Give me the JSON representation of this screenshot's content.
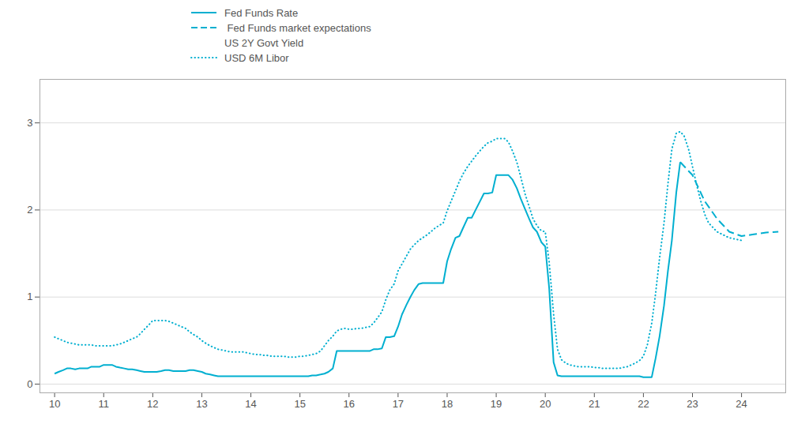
{
  "chart_data": {
    "type": "line",
    "xlim": [
      2009.7,
      2024.9
    ],
    "ylim": [
      -0.1,
      3.5
    ],
    "xticks": [
      {
        "value": 2010,
        "label": "10"
      },
      {
        "value": 2011,
        "label": "11"
      },
      {
        "value": 2012,
        "label": "12"
      },
      {
        "value": 2013,
        "label": "13"
      },
      {
        "value": 2014,
        "label": "14"
      },
      {
        "value": 2015,
        "label": "15"
      },
      {
        "value": 2016,
        "label": "16"
      },
      {
        "value": 2017,
        "label": "17"
      },
      {
        "value": 2018,
        "label": "18"
      },
      {
        "value": 2019,
        "label": "19"
      },
      {
        "value": 2020,
        "label": "20"
      },
      {
        "value": 2021,
        "label": "21"
      },
      {
        "value": 2022,
        "label": "22"
      },
      {
        "value": 2023,
        "label": "23"
      },
      {
        "value": 2024,
        "label": "24"
      }
    ],
    "yticks": [
      0,
      1,
      2,
      3
    ],
    "grid": true,
    "legend": "upper left",
    "series": [
      {
        "name": "Fed Funds Rate",
        "color": "#00afd0",
        "line_style": "solid",
        "x": [
          2010.0,
          2010.08,
          2010.17,
          2010.25,
          2010.33,
          2010.42,
          2010.5,
          2010.58,
          2010.67,
          2010.75,
          2010.83,
          2010.92,
          2011.0,
          2011.08,
          2011.17,
          2011.25,
          2011.33,
          2011.42,
          2011.5,
          2011.58,
          2011.67,
          2011.75,
          2011.83,
          2011.92,
          2012.0,
          2012.08,
          2012.17,
          2012.25,
          2012.33,
          2012.42,
          2012.5,
          2012.58,
          2012.67,
          2012.75,
          2012.83,
          2012.92,
          2013.0,
          2013.08,
          2013.17,
          2013.25,
          2013.33,
          2013.42,
          2013.5,
          2013.58,
          2013.67,
          2013.75,
          2013.83,
          2013.92,
          2014.0,
          2014.08,
          2014.17,
          2014.25,
          2014.33,
          2014.42,
          2014.5,
          2014.58,
          2014.67,
          2014.75,
          2014.83,
          2014.92,
          2015.0,
          2015.08,
          2015.17,
          2015.25,
          2015.33,
          2015.42,
          2015.5,
          2015.58,
          2015.67,
          2015.75,
          2015.83,
          2015.92,
          2016.0,
          2016.08,
          2016.17,
          2016.25,
          2016.33,
          2016.42,
          2016.5,
          2016.58,
          2016.67,
          2016.75,
          2016.83,
          2016.92,
          2017.0,
          2017.08,
          2017.17,
          2017.25,
          2017.33,
          2017.42,
          2017.5,
          2017.58,
          2017.67,
          2017.75,
          2017.83,
          2017.92,
          2018.0,
          2018.08,
          2018.17,
          2018.25,
          2018.33,
          2018.42,
          2018.5,
          2018.58,
          2018.67,
          2018.75,
          2018.83,
          2018.92,
          2019.0,
          2019.08,
          2019.17,
          2019.25,
          2019.33,
          2019.42,
          2019.5,
          2019.58,
          2019.67,
          2019.75,
          2019.83,
          2019.92,
          2020.0,
          2020.08,
          2020.17,
          2020.25,
          2020.33,
          2020.42,
          2020.5,
          2020.58,
          2020.67,
          2020.75,
          2020.83,
          2020.92,
          2021.0,
          2021.08,
          2021.17,
          2021.25,
          2021.33,
          2021.42,
          2021.5,
          2021.58,
          2021.67,
          2021.75,
          2021.83,
          2021.92,
          2022.0,
          2022.08,
          2022.17,
          2022.25,
          2022.33,
          2022.42,
          2022.5,
          2022.58,
          2022.67,
          2022.75
        ],
        "values": [
          0.12,
          0.14,
          0.16,
          0.18,
          0.18,
          0.17,
          0.18,
          0.18,
          0.18,
          0.2,
          0.2,
          0.2,
          0.22,
          0.22,
          0.22,
          0.2,
          0.19,
          0.18,
          0.17,
          0.17,
          0.16,
          0.15,
          0.14,
          0.14,
          0.14,
          0.14,
          0.15,
          0.16,
          0.16,
          0.15,
          0.15,
          0.15,
          0.15,
          0.16,
          0.16,
          0.15,
          0.14,
          0.12,
          0.11,
          0.1,
          0.09,
          0.09,
          0.09,
          0.09,
          0.09,
          0.09,
          0.09,
          0.09,
          0.09,
          0.09,
          0.09,
          0.09,
          0.09,
          0.09,
          0.09,
          0.09,
          0.09,
          0.09,
          0.09,
          0.09,
          0.09,
          0.09,
          0.09,
          0.1,
          0.1,
          0.11,
          0.12,
          0.14,
          0.18,
          0.38,
          0.38,
          0.38,
          0.38,
          0.38,
          0.38,
          0.38,
          0.38,
          0.38,
          0.4,
          0.4,
          0.41,
          0.54,
          0.54,
          0.55,
          0.66,
          0.8,
          0.91,
          1.0,
          1.08,
          1.15,
          1.16,
          1.16,
          1.16,
          1.16,
          1.16,
          1.16,
          1.41,
          1.55,
          1.68,
          1.7,
          1.8,
          1.91,
          1.91,
          2.0,
          2.1,
          2.19,
          2.19,
          2.2,
          2.4,
          2.4,
          2.4,
          2.4,
          2.35,
          2.25,
          2.13,
          2.02,
          1.9,
          1.8,
          1.75,
          1.63,
          1.58,
          1.1,
          0.25,
          0.1,
          0.09,
          0.09,
          0.09,
          0.09,
          0.09,
          0.09,
          0.09,
          0.09,
          0.09,
          0.09,
          0.09,
          0.09,
          0.09,
          0.09,
          0.09,
          0.09,
          0.09,
          0.09,
          0.09,
          0.09,
          0.08,
          0.08,
          0.08,
          0.3,
          0.55,
          0.9,
          1.3,
          1.65,
          2.2,
          2.55
        ]
      },
      {
        "name": " Fed Funds market expectations",
        "color": "#00afd0",
        "line_style": "dashed",
        "x": [
          2022.75,
          2023.0,
          2023.25,
          2023.5,
          2023.75,
          2024.0,
          2024.25,
          2024.5,
          2024.75
        ],
        "values": [
          2.55,
          2.4,
          2.1,
          1.9,
          1.75,
          1.7,
          1.72,
          1.74,
          1.75
        ]
      },
      {
        "name": "US 2Y Govt Yield",
        "line_style": "none",
        "x": [],
        "values": []
      },
      {
        "name": "USD 6M Libor",
        "color": "#00afd0",
        "line_style": "dotted",
        "x": [
          2010.0,
          2010.08,
          2010.17,
          2010.25,
          2010.33,
          2010.42,
          2010.5,
          2010.58,
          2010.67,
          2010.75,
          2010.83,
          2010.92,
          2011.0,
          2011.08,
          2011.17,
          2011.25,
          2011.33,
          2011.42,
          2011.5,
          2011.58,
          2011.67,
          2011.75,
          2011.83,
          2011.92,
          2012.0,
          2012.08,
          2012.17,
          2012.25,
          2012.33,
          2012.42,
          2012.5,
          2012.58,
          2012.67,
          2012.75,
          2012.83,
          2012.92,
          2013.0,
          2013.08,
          2013.17,
          2013.25,
          2013.33,
          2013.42,
          2013.5,
          2013.58,
          2013.67,
          2013.75,
          2013.83,
          2013.92,
          2014.0,
          2014.08,
          2014.17,
          2014.25,
          2014.33,
          2014.42,
          2014.5,
          2014.58,
          2014.67,
          2014.75,
          2014.83,
          2014.92,
          2015.0,
          2015.08,
          2015.17,
          2015.25,
          2015.33,
          2015.42,
          2015.5,
          2015.58,
          2015.67,
          2015.75,
          2015.83,
          2015.92,
          2016.0,
          2016.08,
          2016.17,
          2016.25,
          2016.33,
          2016.42,
          2016.5,
          2016.58,
          2016.67,
          2016.75,
          2016.83,
          2016.92,
          2017.0,
          2017.08,
          2017.17,
          2017.25,
          2017.33,
          2017.42,
          2017.5,
          2017.58,
          2017.67,
          2017.75,
          2017.83,
          2017.92,
          2018.0,
          2018.08,
          2018.17,
          2018.25,
          2018.33,
          2018.42,
          2018.5,
          2018.58,
          2018.67,
          2018.75,
          2018.83,
          2018.92,
          2019.0,
          2019.08,
          2019.17,
          2019.25,
          2019.33,
          2019.42,
          2019.5,
          2019.58,
          2019.67,
          2019.75,
          2019.83,
          2019.92,
          2020.0,
          2020.08,
          2020.17,
          2020.25,
          2020.33,
          2020.42,
          2020.5,
          2020.58,
          2020.67,
          2020.75,
          2020.83,
          2020.92,
          2021.0,
          2021.08,
          2021.17,
          2021.25,
          2021.33,
          2021.42,
          2021.5,
          2021.58,
          2021.67,
          2021.75,
          2021.83,
          2021.92,
          2022.0,
          2022.08,
          2022.17,
          2022.25,
          2022.33,
          2022.42,
          2022.5,
          2022.58,
          2022.67,
          2022.75,
          2022.83,
          2022.92,
          2023.0,
          2023.08,
          2023.17,
          2023.25,
          2023.33,
          2023.5,
          2023.75,
          2024.0
        ],
        "values": [
          0.54,
          0.52,
          0.5,
          0.48,
          0.47,
          0.46,
          0.45,
          0.45,
          0.45,
          0.45,
          0.44,
          0.44,
          0.44,
          0.44,
          0.44,
          0.45,
          0.46,
          0.48,
          0.5,
          0.52,
          0.54,
          0.58,
          0.63,
          0.68,
          0.73,
          0.73,
          0.73,
          0.73,
          0.72,
          0.7,
          0.68,
          0.66,
          0.64,
          0.6,
          0.57,
          0.54,
          0.5,
          0.47,
          0.44,
          0.42,
          0.4,
          0.39,
          0.38,
          0.37,
          0.37,
          0.37,
          0.37,
          0.36,
          0.35,
          0.34,
          0.34,
          0.33,
          0.33,
          0.32,
          0.32,
          0.32,
          0.32,
          0.31,
          0.31,
          0.31,
          0.32,
          0.32,
          0.33,
          0.34,
          0.35,
          0.38,
          0.44,
          0.5,
          0.55,
          0.61,
          0.63,
          0.64,
          0.63,
          0.63,
          0.64,
          0.64,
          0.65,
          0.66,
          0.7,
          0.76,
          0.83,
          0.97,
          1.08,
          1.15,
          1.3,
          1.38,
          1.47,
          1.55,
          1.6,
          1.65,
          1.68,
          1.71,
          1.75,
          1.79,
          1.82,
          1.85,
          1.99,
          2.1,
          2.22,
          2.33,
          2.42,
          2.5,
          2.56,
          2.62,
          2.68,
          2.73,
          2.77,
          2.79,
          2.82,
          2.82,
          2.82,
          2.78,
          2.68,
          2.55,
          2.38,
          2.2,
          2.04,
          1.9,
          1.82,
          1.76,
          1.75,
          1.4,
          0.8,
          0.4,
          0.28,
          0.24,
          0.22,
          0.21,
          0.2,
          0.2,
          0.2,
          0.2,
          0.19,
          0.19,
          0.18,
          0.18,
          0.18,
          0.18,
          0.18,
          0.19,
          0.2,
          0.22,
          0.24,
          0.27,
          0.32,
          0.45,
          0.7,
          1.05,
          1.45,
          1.85,
          2.3,
          2.7,
          2.88,
          2.9,
          2.85,
          2.7,
          2.5,
          2.3,
          2.1,
          1.95,
          1.85,
          1.75,
          1.68,
          1.65
        ]
      }
    ]
  }
}
